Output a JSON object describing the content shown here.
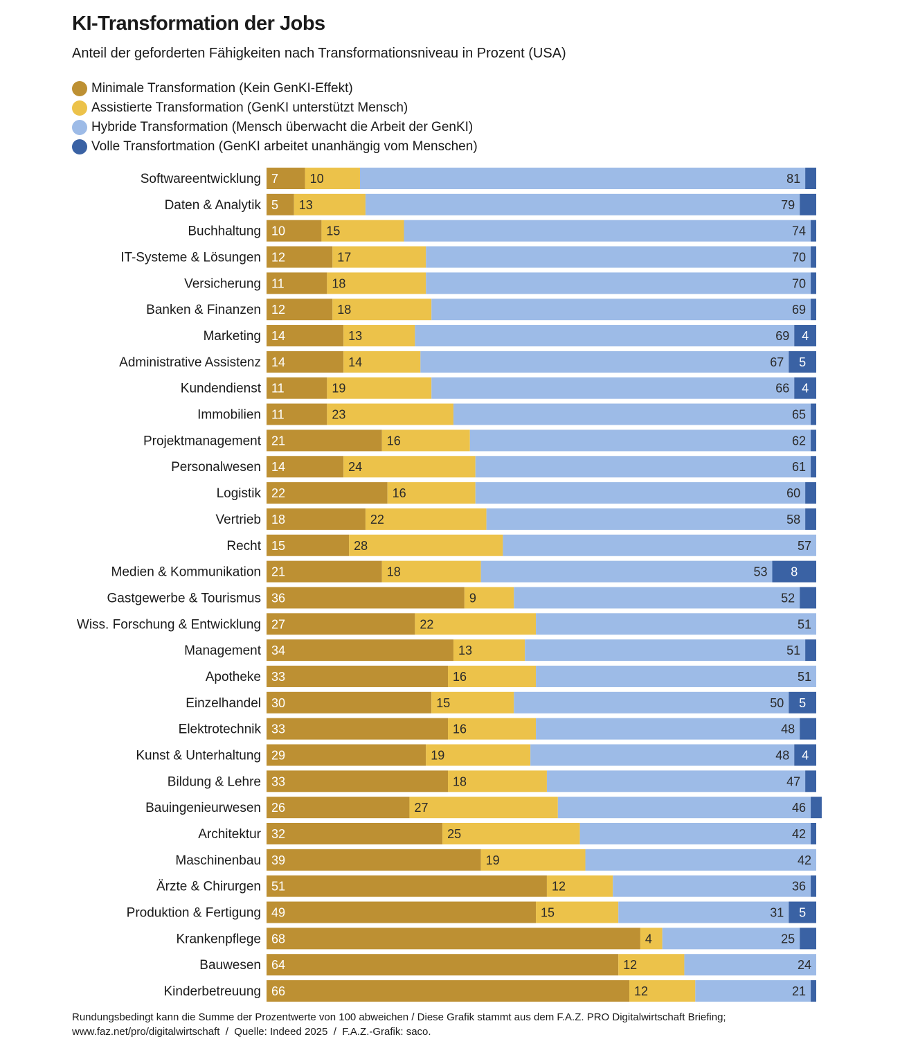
{
  "chart_data": {
    "type": "bar",
    "orientation": "horizontal",
    "stacked": true,
    "title": "KI-Transformation der Jobs",
    "subtitle": "Anteil der geforderten Fähigkeiten nach Transformationsniveau in Prozent (USA)",
    "xlim": [
      0,
      100
    ],
    "grid": false,
    "legend_position": "top-left",
    "categories": [
      "Softwareentwicklung",
      "Daten & Analytik",
      "Buchhaltung",
      "IT-Systeme & Lösungen",
      "Versicherung",
      "Banken & Finanzen",
      "Marketing",
      "Administrative Assistenz",
      "Kundendienst",
      "Immobilien",
      "Projektmanagement",
      "Personalwesen",
      "Logistik",
      "Vertrieb",
      "Recht",
      "Medien & Kommunikation",
      "Gastgewerbe & Tourismus",
      "Wiss. Forschung & Entwicklung",
      "Management",
      "Apotheke",
      "Einzelhandel",
      "Elektrotechnik",
      "Kunst & Unterhaltung",
      "Bildung & Lehre",
      "Bauingenieurwesen",
      "Architektur",
      "Maschinenbau",
      "Ärzte & Chirurgen",
      "Produktion & Fertigung",
      "Krankenpflege",
      "Bauwesen",
      "Kinderbetreuung"
    ],
    "series": [
      {
        "name": "Minimale Transformation (Kein GenKI-Effekt)",
        "color": "#bd9033",
        "label_color": "#ffffff",
        "values": [
          7,
          5,
          10,
          12,
          11,
          12,
          14,
          14,
          11,
          11,
          21,
          14,
          22,
          18,
          15,
          21,
          36,
          27,
          34,
          33,
          30,
          33,
          29,
          33,
          26,
          32,
          39,
          51,
          49,
          68,
          64,
          66
        ]
      },
      {
        "name": "Assistierte Transformation (GenKI unterstützt Mensch)",
        "color": "#ecc24a",
        "label_color": "#2a2a2a",
        "values": [
          10,
          13,
          15,
          17,
          18,
          18,
          13,
          14,
          19,
          23,
          16,
          24,
          16,
          22,
          28,
          18,
          9,
          22,
          13,
          16,
          15,
          16,
          19,
          18,
          27,
          25,
          19,
          12,
          15,
          4,
          12,
          12
        ]
      },
      {
        "name": "Hybride Transformation (Mensch überwacht die Arbeit der GenKI)",
        "color": "#9dbbe7",
        "label_color": "#2a2a2a",
        "values": [
          81,
          79,
          74,
          70,
          70,
          69,
          69,
          67,
          66,
          65,
          62,
          61,
          60,
          58,
          57,
          53,
          52,
          51,
          51,
          51,
          50,
          48,
          48,
          47,
          46,
          42,
          42,
          36,
          31,
          25,
          24,
          21
        ]
      },
      {
        "name": "Volle Transfortmation (GenKI arbeitet unanhängig vom Menschen)",
        "color": "#3a62a4",
        "label_color": "#ffffff",
        "values": [
          2,
          3,
          1,
          1,
          1,
          1,
          4,
          5,
          4,
          1,
          1,
          1,
          2,
          2,
          0,
          8,
          3,
          0,
          2,
          0,
          5,
          3,
          4,
          2,
          2,
          1,
          0,
          1,
          5,
          3,
          0,
          1
        ]
      }
    ]
  },
  "footer": {
    "line1": "Rundungsbedingt kann die Summe der Prozentwerte von 100 abweichen / Diese Grafik stammt aus dem F.A.Z. PRO Digitalwirtschaft Briefing;",
    "line2": "www.faz.net/pro/digitalwirtschaft  /  Quelle: Indeed 2025  /  F.A.Z.-Grafik: saco."
  }
}
